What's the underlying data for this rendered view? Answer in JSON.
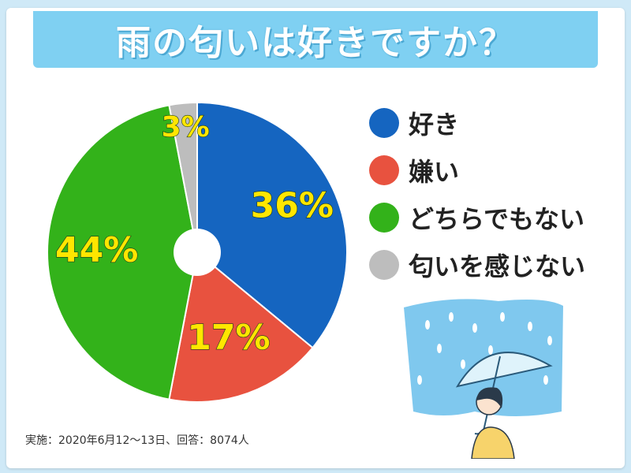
{
  "title": "雨の匂いは好きですか？",
  "footnote": "実施：2020年6月12～13日、回答：8074人",
  "colors": {
    "like": "#1565c0",
    "dislike": "#e8523f",
    "neither": "#33b21a",
    "no_smell": "#bdbdbd",
    "label_fill": "#ffe600",
    "banner": "#7fd0f2"
  },
  "chart_data": {
    "type": "pie",
    "title": "雨の匂いは好きですか？",
    "categories": [
      "好き",
      "嫌い",
      "どちらでもない",
      "匂いを感じない"
    ],
    "values": [
      36,
      17,
      44,
      3
    ],
    "value_labels": [
      "36%",
      "17%",
      "44%",
      "3%"
    ],
    "colors": [
      "#1565c0",
      "#e8523f",
      "#33b21a",
      "#bdbdbd"
    ],
    "start": "12 o'clock",
    "direction": "clockwise",
    "donut_hole": true,
    "legend_position": "right"
  },
  "illustration": {
    "icon": "umbrella-rain-icon"
  }
}
